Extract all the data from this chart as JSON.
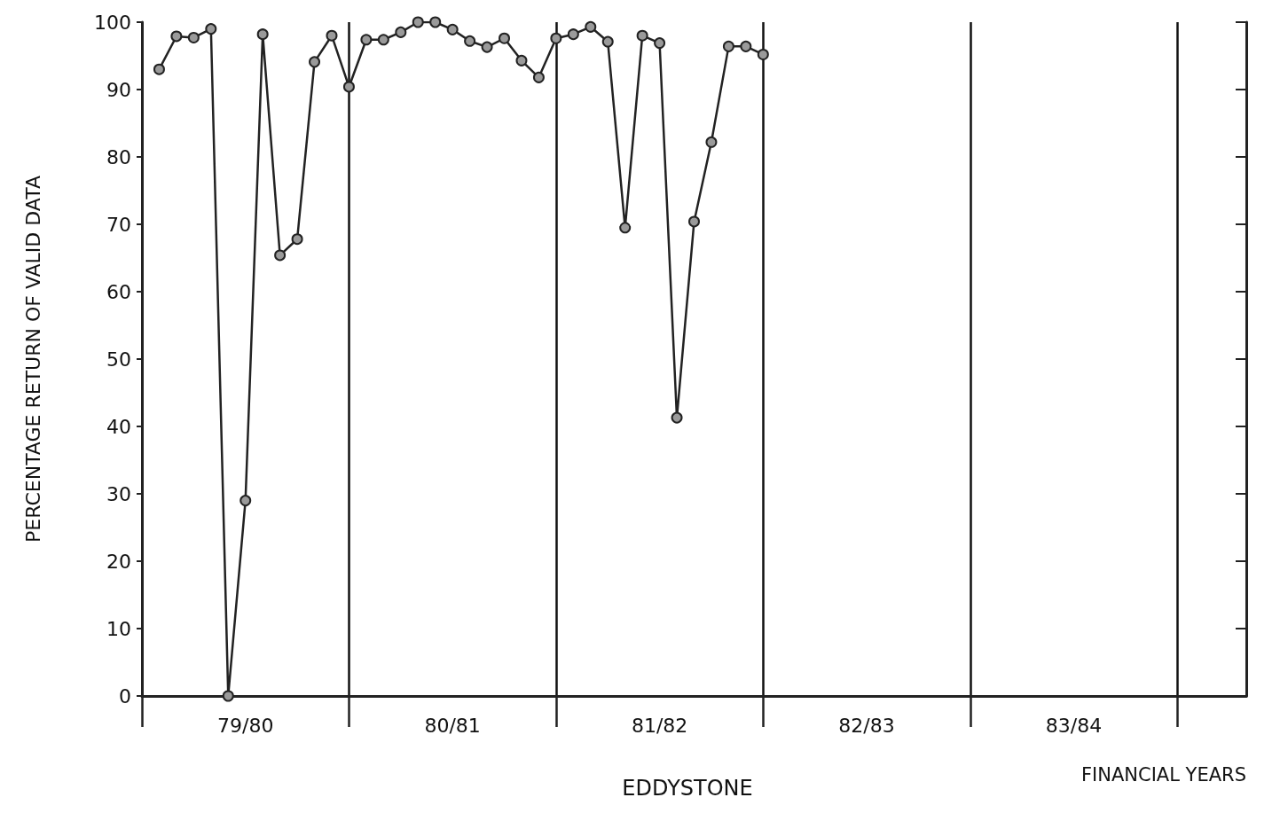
{
  "chart_data": {
    "type": "line",
    "title": "EDDYSTONE",
    "xlabel": "FINANCIAL YEARS",
    "ylabel": "PERCENTAGE RETURN OF VALID DATA",
    "categories": [
      null,
      null,
      null,
      null,
      null,
      null,
      "79/80",
      null,
      null,
      null,
      null,
      null,
      null,
      null,
      null,
      null,
      null,
      null,
      "80/81",
      null,
      null,
      null,
      null,
      null,
      null,
      null,
      null,
      null,
      null,
      null,
      "81/82",
      null,
      null,
      null,
      null,
      null,
      null,
      null,
      null,
      null,
      null,
      null,
      "82/83",
      null,
      null,
      null,
      null,
      null,
      null,
      null,
      null,
      null,
      null,
      null,
      "83/84",
      null,
      null,
      null,
      null,
      null,
      null,
      null,
      null,
      null,
      null
    ],
    "series": [
      {
        "color": "#222222",
        "values": [
          null,
          93.0,
          97.9,
          97.7,
          99.0,
          0,
          29,
          98.2,
          65.4,
          67.8,
          94.1,
          98.0,
          90.4,
          97.4,
          97.4,
          98.5,
          100,
          100,
          98.9,
          97.2,
          96.3,
          97.6,
          94.3,
          91.8,
          97.6,
          98.2,
          99.3,
          97.1,
          69.5,
          98.0,
          96.9,
          41.3,
          70.4,
          82.2,
          96.4,
          96.4,
          95.2,
          null,
          null,
          null,
          null,
          null,
          null,
          null,
          null,
          null,
          null,
          null,
          null,
          null,
          null,
          null,
          null,
          null,
          null,
          null,
          null,
          null,
          null,
          null,
          null,
          null,
          null,
          null,
          null
        ]
      }
    ],
    "ylim": [
      0,
      100
    ],
    "yticks": [
      0,
      10,
      20,
      30,
      40,
      50,
      60,
      70,
      80,
      90,
      100
    ],
    "grid": "x",
    "marker": "circle",
    "line_style": "solid"
  }
}
